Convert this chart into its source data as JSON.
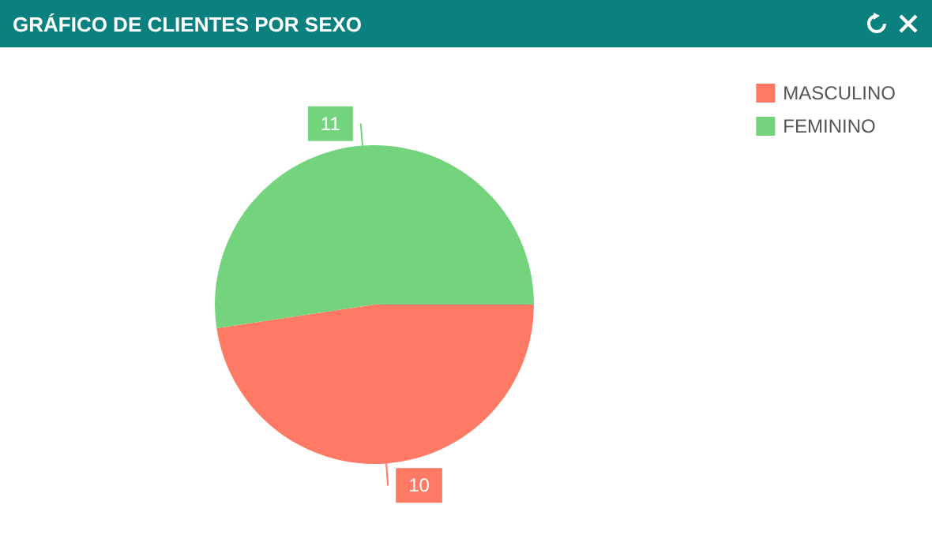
{
  "chart_data": {
    "type": "pie",
    "title": "GRÁFICO DE CLIENTES POR SEXO",
    "categories": [
      "MASCULINO",
      "FEMININO"
    ],
    "values": [
      10,
      11
    ],
    "colors": [
      "#fe7a65",
      "#74d47e"
    ],
    "data_labels": true,
    "legend": "top right"
  }
}
